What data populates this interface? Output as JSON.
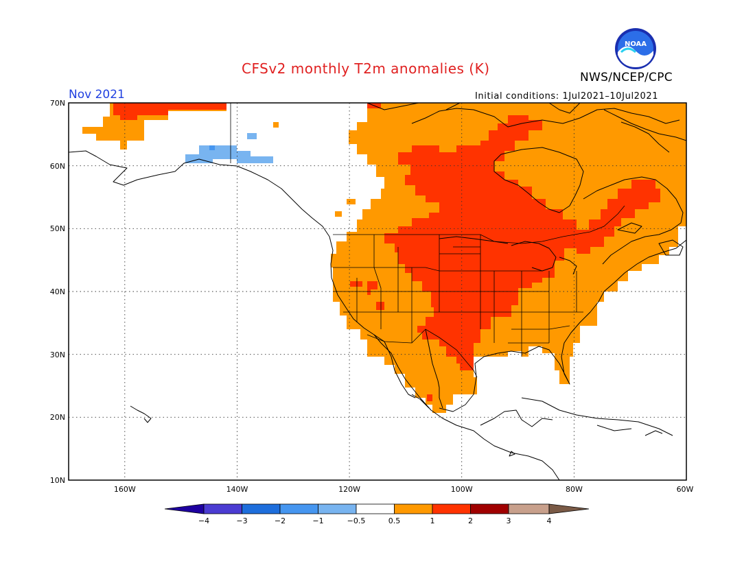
{
  "header": {
    "title": "CFSv2 monthly T2m anomalies (K)",
    "month": "Nov 2021",
    "agency": "NWS/NCEP/CPC",
    "initial_conditions": "Initial conditions: 1Jul2021–10Jul2021",
    "logo_text": "NOAA"
  },
  "axes": {
    "lat_labels": [
      "70N",
      "60N",
      "50N",
      "40N",
      "30N",
      "20N",
      "10N"
    ],
    "lon_labels": [
      "160W",
      "140W",
      "120W",
      "100W",
      "80W",
      "60W"
    ]
  },
  "legend": {
    "labels": [
      "−4",
      "−3",
      "−2",
      "−1",
      "−0.5",
      "0.5",
      "1",
      "2",
      "3",
      "4"
    ],
    "colors": [
      "#1e00a0",
      "#4b3cd2",
      "#1e6edc",
      "#4696f0",
      "#78b4f0",
      "#ffffff",
      "#ff9900",
      "#ff3300",
      "#a00000",
      "#c8a08c",
      "#7a5a46"
    ]
  },
  "colors": {
    "orange": "#ff9900",
    "red": "#ff3300",
    "light_blue": "#78b4f0",
    "blue": "#4696f0"
  }
}
